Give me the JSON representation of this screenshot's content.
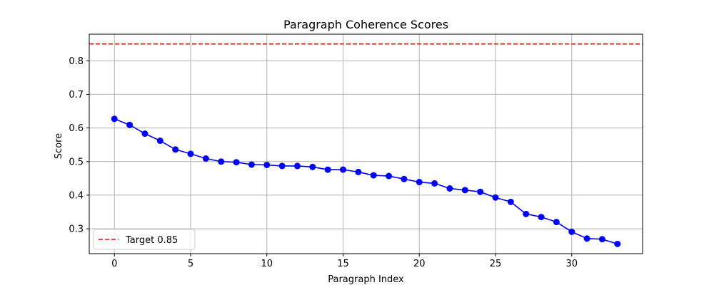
{
  "chart_data": {
    "type": "line",
    "title": "Paragraph Coherence Scores",
    "xlabel": "Paragraph Index",
    "ylabel": "Score",
    "xlim": [
      -1.65,
      34.65
    ],
    "ylim": [
      0.226,
      0.879
    ],
    "xticks": [
      0,
      5,
      10,
      15,
      20,
      25,
      30
    ],
    "yticks": [
      0.3,
      0.4,
      0.5,
      0.6,
      0.7,
      0.8
    ],
    "grid": true,
    "legend_position": "bottom-left",
    "series": [
      {
        "x": [
          0,
          1,
          2,
          3,
          4,
          5,
          6,
          7,
          8,
          9,
          10,
          11,
          12,
          13,
          14,
          15,
          16,
          17,
          18,
          19,
          20,
          21,
          22,
          23,
          24,
          25,
          26,
          27,
          28,
          29,
          30,
          31,
          32,
          33
        ],
        "values": [
          0.627,
          0.609,
          0.583,
          0.562,
          0.536,
          0.523,
          0.509,
          0.5,
          0.498,
          0.491,
          0.49,
          0.487,
          0.487,
          0.484,
          0.476,
          0.476,
          0.469,
          0.459,
          0.457,
          0.448,
          0.439,
          0.435,
          0.42,
          0.415,
          0.41,
          0.393,
          0.38,
          0.344,
          0.335,
          0.32,
          0.291,
          0.271,
          0.269,
          0.255
        ],
        "color": "#0000ff",
        "marker": "circle"
      }
    ],
    "reference_lines": [
      {
        "name": "Target 0.85",
        "y": 0.85,
        "color": "#ff0000",
        "style": "dashed"
      }
    ]
  }
}
